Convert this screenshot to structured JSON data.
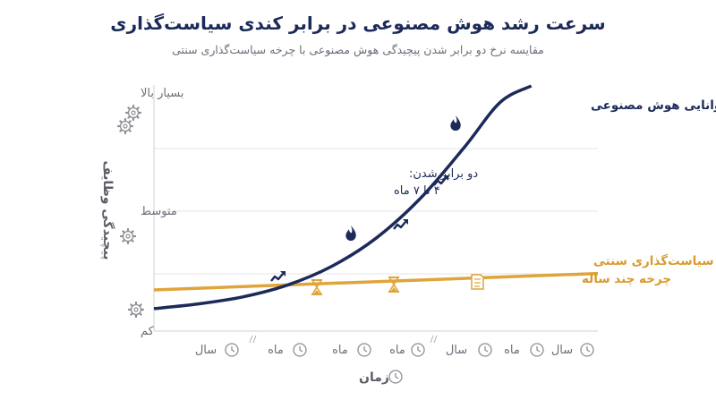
{
  "title": "سرعت رشد هوش مصنوعی در برابر کندی سیاست‌گذاری",
  "subtitle": "مقایسه نرخ دو برابر شدن پیچیدگی هوش مصنوعی با چرخه سیاست‌گذاری سنتی",
  "colors": {
    "ai": "#1c2a5a",
    "policy": "#e0a43a",
    "grid": "#e4e4e4",
    "icon": "#8d8f96",
    "text_gray": "#6b6f7a"
  },
  "chart_data": {
    "type": "line",
    "title": "سرعت رشد هوش مصنوعی در برابر کندی سیاست‌گذاری",
    "subtitle": "مقایسه نرخ دو برابر شدن پیچیدگی هوش مصنوعی با چرخه سیاست‌گذاری سنتی",
    "xlabel": "زمان",
    "ylabel": "پیچیدگی وظایف",
    "y_tick_labels": [
      "کم",
      "متوسط",
      "بسیار بالا"
    ],
    "x_tick_labels": [
      "سال",
      "ماه",
      "ماه",
      "ماه",
      "سال",
      "ماه",
      "سال"
    ],
    "x_range": [
      0,
      100
    ],
    "y_range": [
      0,
      100
    ],
    "grid": "horizontal",
    "series": [
      {
        "name": "توانایی هوش مصنوعی",
        "shape": "exponential",
        "x": [
          0,
          10,
          20,
          30,
          40,
          50,
          60,
          70,
          78,
          85
        ],
        "y": [
          5,
          7,
          10,
          15,
          23,
          35,
          52,
          74,
          93,
          100
        ],
        "color": "#1c2a5a"
      },
      {
        "name": "سیاست‌گذاری سنتی",
        "shape": "linear",
        "x": [
          0,
          100
        ],
        "y": [
          13,
          20
        ],
        "color": "#e0a43a"
      }
    ],
    "annotations": {
      "ai_doubling": [
        "دو برابر شدن:",
        "۴ تا ۷ ماه"
      ],
      "policy_cycle": [
        "سیاست‌گذاری سنتی",
        "چرخه چند ساله"
      ]
    },
    "markers": {
      "ai": [
        "up-arrow",
        "up-arrow",
        "flame",
        "up-arrow",
        "flame"
      ],
      "policy": [
        "hourglass",
        "hourglass",
        "document"
      ]
    }
  }
}
